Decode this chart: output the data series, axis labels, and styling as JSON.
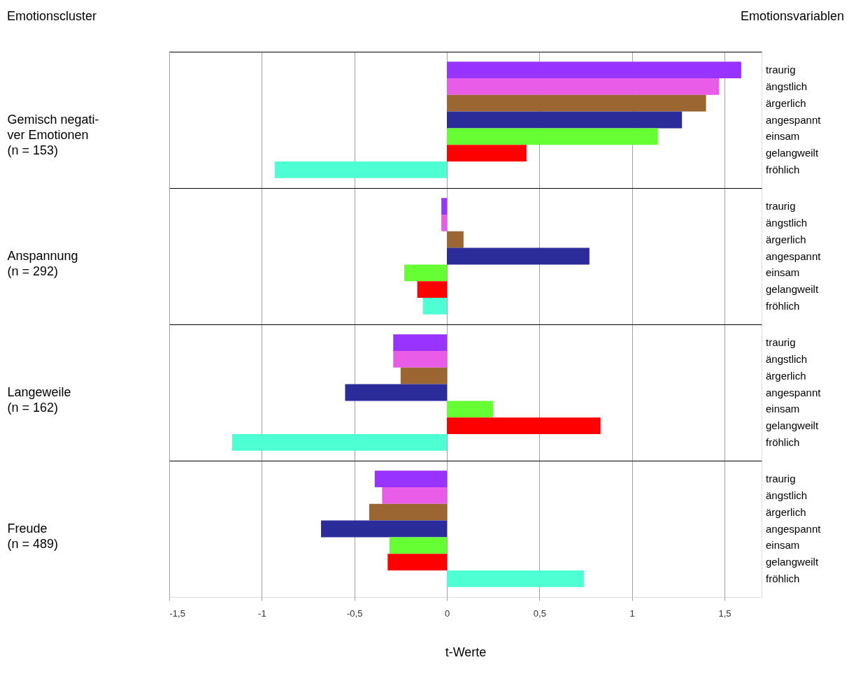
{
  "chart_data": {
    "type": "bar",
    "orientation": "horizontal",
    "ylabel": "Emotionscluster",
    "y2label": "Emotionsvariablen",
    "xlabel": "t-Werte",
    "categories": [
      "Gemisch negati-\nver Emotionen\n(n = 153)",
      "Anspannung\n(n = 292)",
      "Langeweile\n(n = 162)",
      "Freude\n(n = 489)"
    ],
    "series": [
      {
        "name": "traurig",
        "color": "#9933ff",
        "values": [
          1.59,
          -0.03,
          -0.29,
          -0.39
        ]
      },
      {
        "name": "ängstlich",
        "color": "#e85ce8",
        "values": [
          1.47,
          -0.03,
          -0.29,
          -0.35
        ]
      },
      {
        "name": "ärgerlich",
        "color": "#9c6633",
        "values": [
          1.4,
          0.09,
          -0.25,
          -0.42
        ]
      },
      {
        "name": "angespannt",
        "color": "#2b2b99",
        "values": [
          1.27,
          0.77,
          -0.55,
          -0.68
        ]
      },
      {
        "name": "einsam",
        "color": "#66ff33",
        "values": [
          1.14,
          -0.23,
          0.25,
          -0.31
        ]
      },
      {
        "name": "gelangweilt",
        "color": "#ff0000",
        "values": [
          0.43,
          -0.16,
          0.83,
          -0.32
        ]
      },
      {
        "name": "fröhlich",
        "color": "#4dffd2",
        "values": [
          -0.93,
          -0.13,
          -1.16,
          0.74
        ]
      }
    ],
    "xlim": [
      -1.5,
      1.7
    ],
    "xticks": [
      {
        "value": -1.5,
        "label": "-1,5"
      },
      {
        "value": -1,
        "label": "-1"
      },
      {
        "value": -0.5,
        "label": "-0,5"
      },
      {
        "value": 0,
        "label": "0"
      },
      {
        "value": 0.5,
        "label": "0,5"
      },
      {
        "value": 1,
        "label": "1"
      },
      {
        "value": 1.5,
        "label": "1,5"
      }
    ],
    "grid": "x"
  }
}
